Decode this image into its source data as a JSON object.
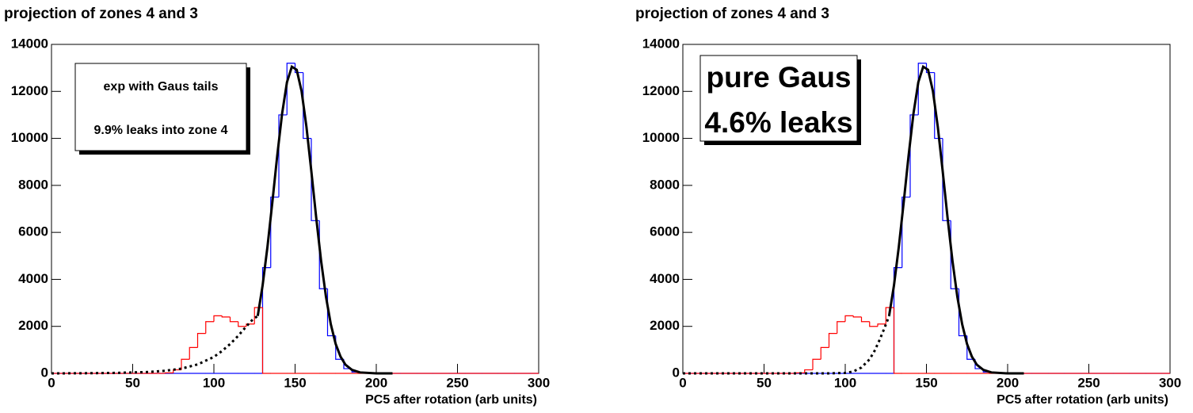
{
  "chart_data": [
    {
      "type": "histogram",
      "title": "projection of zones 4 and 3",
      "xlabel": "PC5 after rotation (arb units)",
      "annotations": [
        "exp with Gaus tails",
        "9.9% leaks into zone 4"
      ],
      "xlim": [
        0,
        300
      ],
      "ylim": [
        0,
        14000
      ],
      "xticks": [
        0,
        50,
        100,
        150,
        200,
        250,
        300
      ],
      "yticks": [
        0,
        2000,
        4000,
        6000,
        8000,
        10000,
        12000,
        14000
      ],
      "bins": [
        0,
        5,
        10,
        15,
        20,
        25,
        30,
        35,
        40,
        45,
        50,
        55,
        60,
        65,
        70,
        75,
        80,
        85,
        90,
        95,
        100,
        105,
        110,
        115,
        120,
        125,
        130,
        135,
        140,
        145,
        150,
        155,
        160,
        165,
        170,
        175,
        180,
        185,
        190,
        195,
        200,
        205,
        210,
        215,
        220,
        225,
        230,
        235,
        240,
        245,
        250,
        255,
        260,
        265,
        270,
        275,
        280,
        285,
        290,
        295,
        300
      ],
      "series": [
        {
          "color": "#0000ff",
          "values": [
            0,
            0,
            0,
            0,
            0,
            0,
            0,
            0,
            0,
            0,
            0,
            0,
            0,
            0,
            0,
            0,
            0,
            0,
            0,
            0,
            0,
            0,
            0,
            0,
            0,
            0,
            4500,
            7500,
            11000,
            13200,
            12800,
            10000,
            6500,
            3600,
            1600,
            600,
            200,
            60,
            15,
            5,
            0,
            0,
            0,
            0,
            0,
            0,
            0,
            0,
            0,
            0,
            0,
            0,
            0,
            0,
            0,
            0,
            0,
            0,
            0,
            0
          ]
        },
        {
          "color": "#ff0000",
          "values": [
            0,
            0,
            0,
            0,
            0,
            0,
            0,
            0,
            0,
            0,
            0,
            0,
            0,
            0,
            20,
            150,
            600,
            1100,
            1700,
            2200,
            2450,
            2400,
            2200,
            2000,
            2100,
            2800,
            0,
            0,
            0,
            0,
            0,
            0,
            0,
            0,
            0,
            0,
            0,
            0,
            0,
            0,
            0,
            0,
            0,
            0,
            0,
            0,
            0,
            0,
            0,
            0,
            0,
            0,
            0,
            0,
            0,
            0,
            0,
            0,
            0,
            0
          ]
        }
      ],
      "curves": [
        {
          "style": "dashed",
          "color": "#000000",
          "x": [
            0,
            20,
            40,
            60,
            70,
            80,
            90,
            100,
            105,
            110,
            115,
            120,
            124,
            127
          ],
          "y": [
            0,
            5,
            20,
            60,
            110,
            200,
            380,
            700,
            950,
            1250,
            1600,
            2000,
            2300,
            2440
          ]
        },
        {
          "style": "solid",
          "color": "#000000",
          "x": [
            127,
            130,
            133,
            136,
            139,
            142,
            145,
            148,
            151,
            154,
            157,
            160,
            163,
            166,
            169,
            172,
            175,
            178,
            181,
            185,
            190,
            200,
            210
          ],
          "y": [
            2440,
            3740,
            5390,
            7280,
            9260,
            11050,
            12390,
            13050,
            12920,
            12010,
            10490,
            8610,
            6630,
            4800,
            3270,
            2090,
            1250,
            710,
            370,
            150,
            40,
            0,
            0
          ]
        }
      ]
    },
    {
      "type": "histogram",
      "title": "projection of zones 4 and 3",
      "xlabel": "PC5 after rotation (arb units)",
      "annotations": [
        "pure Gaus",
        "4.6% leaks"
      ],
      "xlim": [
        0,
        300
      ],
      "ylim": [
        0,
        14000
      ],
      "xticks": [
        0,
        50,
        100,
        150,
        200,
        250,
        300
      ],
      "yticks": [
        0,
        2000,
        4000,
        6000,
        8000,
        10000,
        12000,
        14000
      ],
      "bins": [
        0,
        5,
        10,
        15,
        20,
        25,
        30,
        35,
        40,
        45,
        50,
        55,
        60,
        65,
        70,
        75,
        80,
        85,
        90,
        95,
        100,
        105,
        110,
        115,
        120,
        125,
        130,
        135,
        140,
        145,
        150,
        155,
        160,
        165,
        170,
        175,
        180,
        185,
        190,
        195,
        200,
        205,
        210,
        215,
        220,
        225,
        230,
        235,
        240,
        245,
        250,
        255,
        260,
        265,
        270,
        275,
        280,
        285,
        290,
        295,
        300
      ],
      "series": [
        {
          "color": "#0000ff",
          "values": [
            0,
            0,
            0,
            0,
            0,
            0,
            0,
            0,
            0,
            0,
            0,
            0,
            0,
            0,
            0,
            0,
            0,
            0,
            0,
            0,
            0,
            0,
            0,
            0,
            0,
            0,
            4500,
            7500,
            11000,
            13200,
            12800,
            10000,
            6500,
            3600,
            1600,
            600,
            200,
            60,
            15,
            5,
            0,
            0,
            0,
            0,
            0,
            0,
            0,
            0,
            0,
            0,
            0,
            0,
            0,
            0,
            0,
            0,
            0,
            0,
            0,
            0
          ]
        },
        {
          "color": "#ff0000",
          "values": [
            0,
            0,
            0,
            0,
            0,
            0,
            0,
            0,
            0,
            0,
            0,
            0,
            0,
            0,
            20,
            150,
            600,
            1100,
            1700,
            2200,
            2450,
            2400,
            2200,
            2000,
            2100,
            2800,
            0,
            0,
            0,
            0,
            0,
            0,
            0,
            0,
            0,
            0,
            0,
            0,
            0,
            0,
            0,
            0,
            0,
            0,
            0,
            0,
            0,
            0,
            0,
            0,
            0,
            0,
            0,
            0,
            0,
            0,
            0,
            0,
            0,
            0
          ]
        }
      ],
      "curves": [
        {
          "style": "dashed",
          "color": "#000000",
          "x": [
            0,
            90,
            100,
            105,
            110,
            115,
            118,
            121,
            124,
            127
          ],
          "y": [
            0,
            0,
            20,
            80,
            250,
            600,
            950,
            1400,
            1900,
            2440
          ]
        },
        {
          "style": "solid",
          "color": "#000000",
          "x": [
            127,
            130,
            133,
            136,
            139,
            142,
            145,
            148,
            151,
            154,
            157,
            160,
            163,
            166,
            169,
            172,
            175,
            178,
            181,
            185,
            190,
            200,
            210
          ],
          "y": [
            2440,
            3740,
            5390,
            7280,
            9260,
            11050,
            12390,
            13050,
            12920,
            12010,
            10490,
            8610,
            6630,
            4800,
            3270,
            2090,
            1250,
            710,
            370,
            150,
            40,
            0,
            0
          ]
        }
      ]
    }
  ]
}
